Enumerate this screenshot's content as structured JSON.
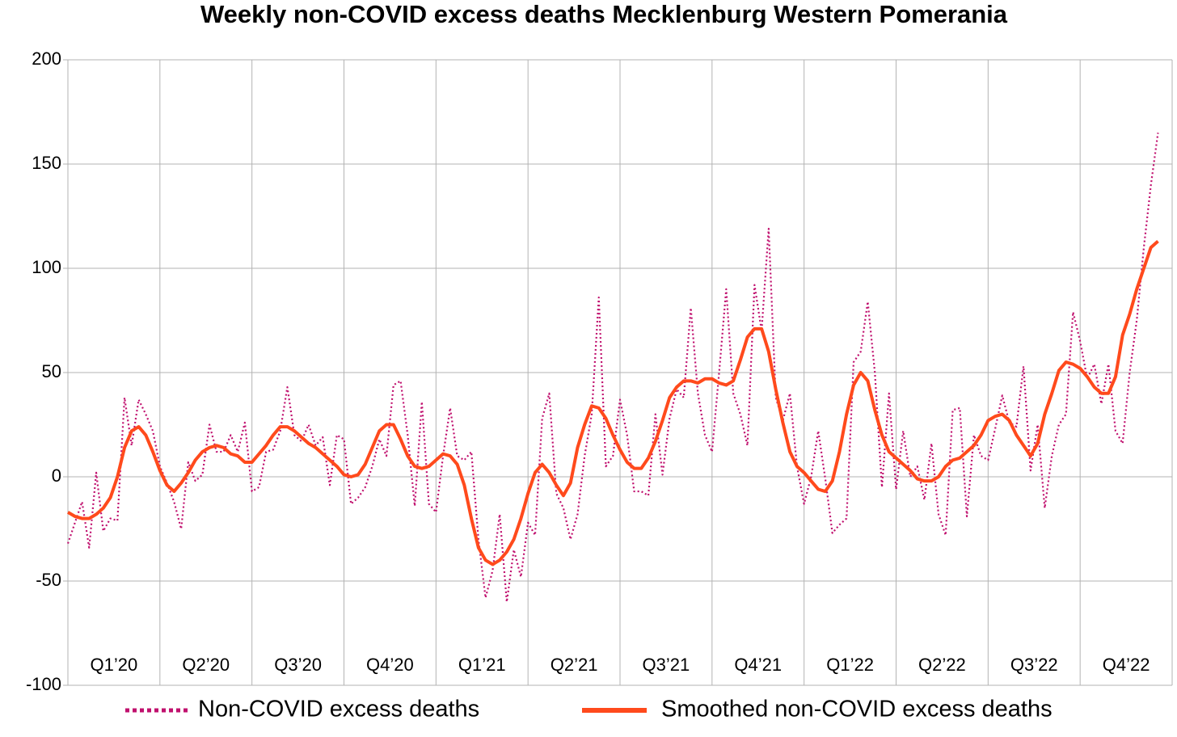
{
  "chart_data": {
    "type": "line",
    "title": "Weekly non-COVID excess deaths Mecklenburg Western Pomerania",
    "categories": [
      null,
      null,
      null,
      null,
      null,
      null,
      "Q1’20",
      null,
      null,
      null,
      null,
      null,
      null,
      null,
      null,
      null,
      null,
      null,
      null,
      "Q2’20",
      null,
      null,
      null,
      null,
      null,
      null,
      null,
      null,
      null,
      null,
      null,
      null,
      "Q3’20",
      null,
      null,
      null,
      null,
      null,
      null,
      null,
      null,
      null,
      null,
      null,
      null,
      "Q4’20",
      null,
      null,
      null,
      null,
      null,
      null,
      null,
      null,
      null,
      null,
      null,
      null,
      "Q1’21",
      null,
      null,
      null,
      null,
      null,
      null,
      null,
      null,
      null,
      null,
      null,
      null,
      "Q2’21",
      null,
      null,
      null,
      null,
      null,
      null,
      null,
      null,
      null,
      null,
      null,
      null,
      "Q3’21",
      null,
      null,
      null,
      null,
      null,
      null,
      null,
      null,
      null,
      null,
      null,
      null,
      "Q4’21",
      null,
      null,
      null,
      null,
      null,
      null,
      null,
      null,
      null,
      null,
      null,
      null,
      "Q1’22",
      null,
      null,
      null,
      null,
      null,
      null,
      null,
      null,
      null,
      null,
      null,
      null,
      "Q2’22",
      null,
      null,
      null,
      null,
      null,
      null,
      null,
      null,
      null,
      null,
      null,
      null,
      "Q3’22",
      null,
      null,
      null,
      null,
      null,
      null,
      null,
      null,
      null,
      null,
      null,
      null,
      "Q4’22",
      null,
      null,
      null,
      null,
      null
    ],
    "series": [
      {
        "name": "Non-COVID excess deaths",
        "color": "#c0106e",
        "dash": "dotted",
        "values": [
          -32,
          -22,
          -12,
          -34,
          2,
          -26,
          -20,
          -21,
          38,
          15,
          37,
          30,
          22,
          5,
          -3,
          -12,
          -25,
          7,
          -2,
          1,
          25,
          12,
          12,
          20,
          12,
          26,
          -7,
          -5,
          12,
          13,
          22,
          43,
          20,
          17,
          25,
          15,
          19,
          -4,
          20,
          18,
          -13,
          -10,
          -5,
          5,
          18,
          10,
          44,
          46,
          20,
          -14,
          36,
          -13,
          -17,
          10,
          33,
          10,
          8,
          12,
          -30,
          -58,
          -45,
          -18,
          -60,
          -35,
          -48,
          -22,
          -28,
          28,
          40,
          -8,
          -15,
          -30,
          -18,
          10,
          30,
          86,
          5,
          10,
          37,
          20,
          -7,
          -7,
          -9,
          30,
          1,
          28,
          42,
          38,
          81,
          40,
          20,
          12,
          50,
          90,
          40,
          30,
          15,
          92,
          70,
          119,
          38,
          27,
          40,
          5,
          -13,
          0,
          22,
          -1,
          -27,
          -23,
          -20,
          55,
          60,
          84,
          50,
          -5,
          40,
          -6,
          22,
          0,
          5,
          -11,
          16,
          -18,
          -28,
          32,
          33,
          -19,
          20,
          10,
          8,
          23,
          39,
          26,
          24,
          53,
          3,
          25,
          -15,
          10,
          25,
          30,
          79,
          65,
          47,
          54,
          35,
          54,
          22,
          16,
          50,
          75,
          110,
          140,
          165
        ]
      },
      {
        "name": "Smoothed non-COVID excess deaths",
        "color": "#ff4a1c",
        "dash": "solid",
        "values": [
          -17,
          -19,
          -20,
          -20,
          -18,
          -15,
          -10,
          0,
          14,
          22,
          24,
          20,
          12,
          3,
          -4,
          -7,
          -3,
          2,
          8,
          12,
          14,
          15,
          14,
          11,
          10,
          7,
          7,
          11,
          15,
          20,
          24,
          24,
          22,
          19,
          16,
          14,
          11,
          8,
          5,
          1,
          0,
          1,
          6,
          14,
          22,
          25,
          25,
          18,
          10,
          5,
          4,
          5,
          8,
          11,
          10,
          6,
          -4,
          -20,
          -34,
          -40,
          -42,
          -40,
          -36,
          -30,
          -20,
          -8,
          2,
          6,
          2,
          -4,
          -9,
          -3,
          14,
          25,
          34,
          33,
          28,
          20,
          13,
          7,
          4,
          4,
          9,
          17,
          27,
          38,
          43,
          46,
          46,
          45,
          47,
          47,
          45,
          44,
          46,
          56,
          67,
          71,
          71,
          60,
          42,
          26,
          12,
          5,
          2,
          -2,
          -6,
          -7,
          -2,
          12,
          30,
          44,
          50,
          46,
          32,
          20,
          12,
          9,
          6,
          3,
          -1,
          -2,
          -2,
          0,
          5,
          8,
          9,
          12,
          15,
          20,
          27,
          29,
          30,
          27,
          20,
          15,
          10,
          16,
          30,
          40,
          51,
          55,
          54,
          52,
          48,
          43,
          40,
          40,
          48,
          68,
          78,
          90,
          100,
          110,
          113
        ]
      }
    ],
    "ylim": [
      -100,
      200
    ],
    "yticks": [
      -100,
      -50,
      0,
      50,
      100,
      150,
      200
    ],
    "grid": true,
    "legend": "bottom"
  }
}
